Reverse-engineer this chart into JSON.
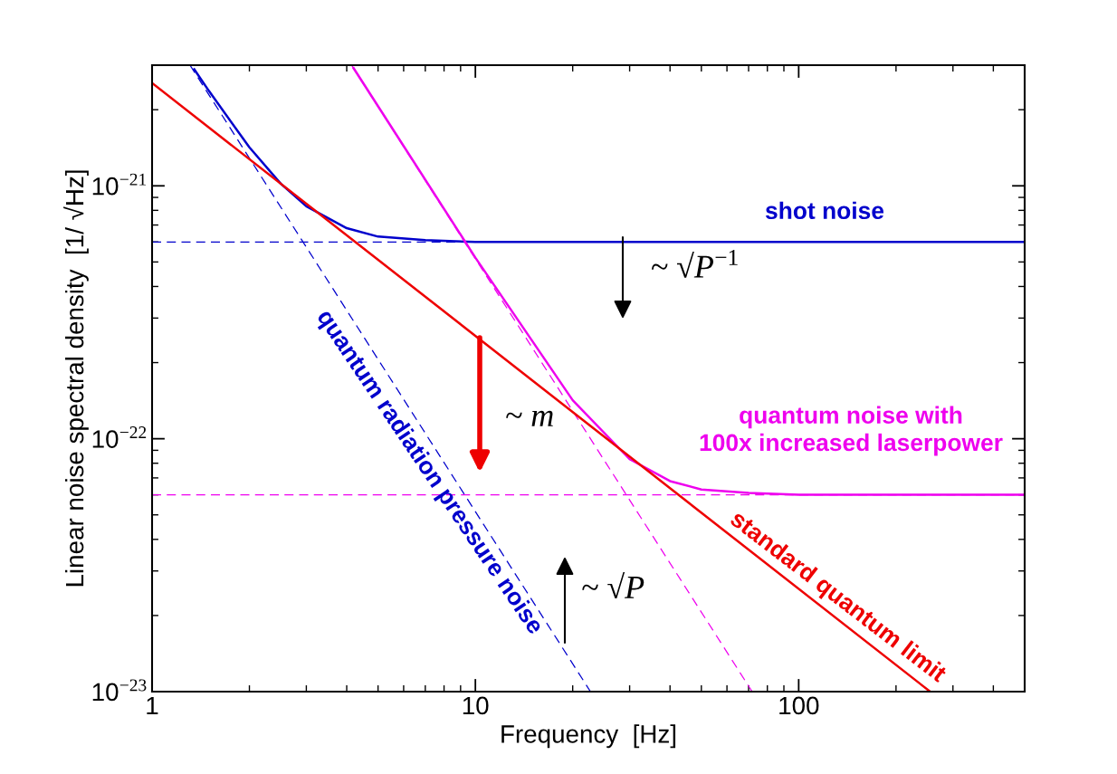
{
  "chart_data": {
    "type": "line",
    "xlabel": "Frequency  [Hz]",
    "ylabel": "Linear noise spectral density  [1/ √Hz]",
    "log": "xy",
    "grid": false,
    "xlim": [
      1,
      500
    ],
    "xticks": [
      1,
      10,
      100
    ],
    "ylim": [
      1e-23,
      3e-21
    ],
    "yticks": [
      {
        "value": 1e-23,
        "label": "10$^{−23}$"
      },
      {
        "value": 1e-22,
        "label": "10$^{−22}$"
      },
      {
        "value": 1e-21,
        "label": "10$^{−21}$"
      }
    ],
    "series": [
      {
        "color": "#0000cc",
        "line_style": "dashed",
        "x": [
          1,
          500
        ],
        "values": [
          6e-22,
          6e-22
        ]
      },
      {
        "name": "quantum radiation pressure noise",
        "color": "#0000cc",
        "line_style": "dashed",
        "x": [
          1.31,
          22.7
        ],
        "values": [
          3e-21,
          1e-23
        ]
      },
      {
        "name": "shot noise",
        "color": "#0000cc",
        "line_style": "solid",
        "x": [
          1.35,
          1.5,
          2,
          2.5,
          3,
          4,
          5,
          7,
          10,
          500
        ],
        "values": [
          2.89e-21,
          2.37e-21,
          1.42e-21,
          1.02e-21,
          8.3e-22,
          6.8e-22,
          6.3e-22,
          6.1e-22,
          6e-22,
          6e-22
        ]
      },
      {
        "color": "#ee00ee",
        "line_style": "dashed",
        "x": [
          1,
          500
        ],
        "values": [
          6e-23,
          6e-23
        ]
      },
      {
        "color": "#ee00ee",
        "line_style": "dashed",
        "x": [
          4.14,
          71.8
        ],
        "values": [
          3e-21,
          1e-23
        ]
      },
      {
        "name": "quantum noise with\n100x increased laserpower",
        "color": "#ee00ee",
        "line_style": "solid",
        "x": [
          4.2,
          10,
          20,
          30,
          40,
          50,
          70,
          100,
          500
        ],
        "values": [
          2.92e-21,
          5.2e-22,
          1.42e-22,
          8.3e-23,
          6.8e-23,
          6.3e-23,
          6.1e-23,
          6e-23,
          6e-23
        ]
      },
      {
        "name": "standard quantum limit",
        "color": "#ee0000",
        "line_style": "solid",
        "x": [
          1,
          255
        ],
        "values": [
          2.55e-21,
          1e-23
        ]
      }
    ],
    "annotations": [
      "~ √P$^{−1}$",
      "~ m",
      "~ √P"
    ]
  }
}
